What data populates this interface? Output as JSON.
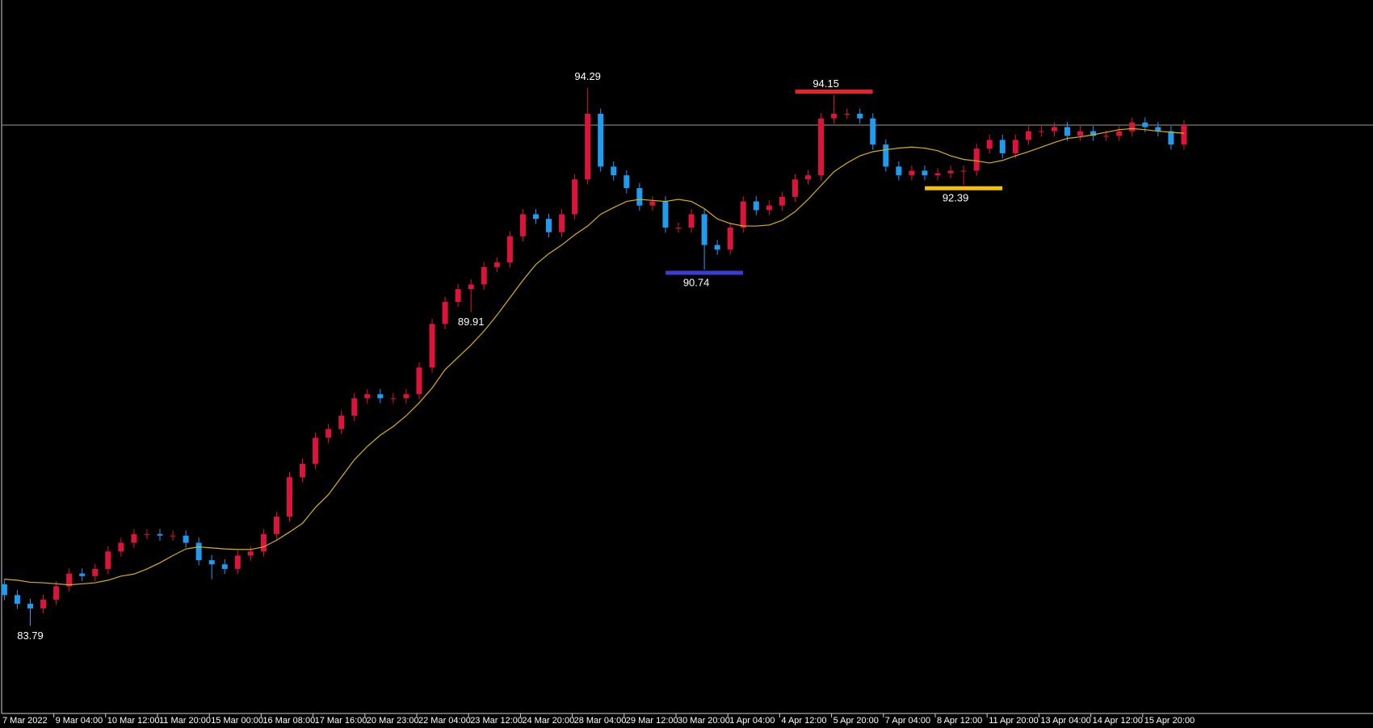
{
  "chart_data": {
    "type": "candlestick",
    "background": "#000000",
    "categories": [
      "7 Mar 2022",
      null,
      null,
      null,
      "9 Mar 04:00",
      null,
      null,
      null,
      "10 Mar 12:00",
      null,
      null,
      null,
      "11 Mar 20:00",
      null,
      null,
      null,
      "15 Mar 00:00",
      null,
      null,
      null,
      "16 Mar 08:00",
      null,
      null,
      null,
      "17 Mar 16:00",
      null,
      null,
      null,
      "20 Mar 23:00",
      null,
      null,
      null,
      "22 Mar 04:00",
      null,
      null,
      null,
      "23 Mar 12:00",
      null,
      null,
      null,
      "24 Mar 20:00",
      null,
      null,
      null,
      "28 Mar 04:00",
      null,
      null,
      null,
      "29 Mar 12:00",
      null,
      null,
      null,
      "30 Mar 20:00",
      null,
      null,
      null,
      "1 Apr 04:00",
      null,
      null,
      null,
      "4 Apr 12:00",
      null,
      null,
      null,
      "5 Apr 20:00",
      null,
      null,
      null,
      "7 Apr 04:00",
      null,
      null,
      null,
      "8 Apr 12:00",
      null,
      null,
      null,
      "11 Apr 20:00",
      null,
      null,
      null,
      "13 Apr 04:00",
      null,
      null,
      null,
      "14 Apr 12:00",
      null,
      null,
      null,
      "15 Apr 20:00",
      null,
      null,
      null
    ],
    "open": [
      84.6,
      84.39,
      84.22,
      84.13,
      84.3,
      84.56,
      84.81,
      84.76,
      84.9,
      85.24,
      85.41,
      85.58,
      85.58,
      85.55,
      85.55,
      85.41,
      85.07,
      84.99,
      84.9,
      85.16,
      85.24,
      85.58,
      85.92,
      86.69,
      86.95,
      87.46,
      87.63,
      87.89,
      88.23,
      88.31,
      88.23,
      88.23,
      88.31,
      88.83,
      89.68,
      90.11,
      90.36,
      90.45,
      90.79,
      90.88,
      91.39,
      91.82,
      91.73,
      91.47,
      91.82,
      92.5,
      93.78,
      92.75,
      92.58,
      92.33,
      91.99,
      92.07,
      91.56,
      91.56,
      91.82,
      91.22,
      91.13,
      91.56,
      92.07,
      91.9,
      91.99,
      92.16,
      92.5,
      92.58,
      93.69,
      93.78,
      93.78,
      93.69,
      93.18,
      92.75,
      92.58,
      92.67,
      92.58,
      92.62,
      92.67,
      92.67,
      93.1,
      93.27,
      93.01,
      93.27,
      93.44,
      93.44,
      93.52,
      93.35,
      93.44,
      93.35,
      93.35,
      93.44,
      93.61,
      93.52,
      93.44,
      93.18
    ],
    "high": [
      84.7,
      84.49,
      84.32,
      84.4,
      84.66,
      84.91,
      84.91,
      85.0,
      85.34,
      85.51,
      85.68,
      85.68,
      85.68,
      85.65,
      85.65,
      85.51,
      85.17,
      85.09,
      85.26,
      85.34,
      85.68,
      86.02,
      86.79,
      87.05,
      87.56,
      87.73,
      87.99,
      88.33,
      88.41,
      88.41,
      88.33,
      88.41,
      88.93,
      89.78,
      90.21,
      90.46,
      90.55,
      90.89,
      90.98,
      91.49,
      91.92,
      91.92,
      91.83,
      91.92,
      92.6,
      94.29,
      93.88,
      92.85,
      92.68,
      92.43,
      92.17,
      92.17,
      91.66,
      91.92,
      91.92,
      91.32,
      91.66,
      92.17,
      92.17,
      92.09,
      92.26,
      92.6,
      92.68,
      93.79,
      94.15,
      93.88,
      93.88,
      93.79,
      93.28,
      92.85,
      92.77,
      92.77,
      92.72,
      92.77,
      92.77,
      93.2,
      93.37,
      93.37,
      93.37,
      93.54,
      93.54,
      93.62,
      93.62,
      93.54,
      93.54,
      93.45,
      93.54,
      93.71,
      93.71,
      93.62,
      93.54,
      93.66
    ],
    "low": [
      84.29,
      84.12,
      83.79,
      84.03,
      84.2,
      84.46,
      84.66,
      84.66,
      84.8,
      85.14,
      85.31,
      85.48,
      85.45,
      85.45,
      85.31,
      84.97,
      84.7,
      84.8,
      84.8,
      85.06,
      85.14,
      85.48,
      85.82,
      86.59,
      86.85,
      87.36,
      87.53,
      87.79,
      88.13,
      88.13,
      88.13,
      88.13,
      88.21,
      88.73,
      89.58,
      90.01,
      89.91,
      90.35,
      90.69,
      90.78,
      91.29,
      91.63,
      91.37,
      91.37,
      91.72,
      92.4,
      92.65,
      92.48,
      92.23,
      91.89,
      91.89,
      91.46,
      91.46,
      91.46,
      90.74,
      91.03,
      91.03,
      91.46,
      91.8,
      91.8,
      91.89,
      92.06,
      92.4,
      92.48,
      93.59,
      93.68,
      93.59,
      93.08,
      92.65,
      92.48,
      92.48,
      92.48,
      92.48,
      92.52,
      92.39,
      92.57,
      93.0,
      92.91,
      92.91,
      93.17,
      93.34,
      93.34,
      93.25,
      93.25,
      93.25,
      93.25,
      93.25,
      93.34,
      93.42,
      93.34,
      93.08,
      93.08
    ],
    "close": [
      84.39,
      84.22,
      84.13,
      84.3,
      84.56,
      84.81,
      84.76,
      84.9,
      85.24,
      85.41,
      85.58,
      85.58,
      85.55,
      85.55,
      85.41,
      85.07,
      84.99,
      84.9,
      85.16,
      85.24,
      85.58,
      85.92,
      86.69,
      86.95,
      87.46,
      87.63,
      87.89,
      88.23,
      88.31,
      88.23,
      88.23,
      88.31,
      88.83,
      89.68,
      90.11,
      90.36,
      90.45,
      90.79,
      90.88,
      91.39,
      91.82,
      91.73,
      91.47,
      91.82,
      92.5,
      93.78,
      92.75,
      92.58,
      92.33,
      91.99,
      92.07,
      91.56,
      91.56,
      91.82,
      91.22,
      91.13,
      91.56,
      92.07,
      91.9,
      91.99,
      92.16,
      92.5,
      92.58,
      93.69,
      93.78,
      93.78,
      93.69,
      93.18,
      92.75,
      92.58,
      92.67,
      92.58,
      92.62,
      92.67,
      92.67,
      93.1,
      93.27,
      93.01,
      93.27,
      93.44,
      93.44,
      93.52,
      93.35,
      93.44,
      93.35,
      93.35,
      93.44,
      93.61,
      93.52,
      93.44,
      93.18,
      93.56
    ],
    "up_color": "#dc143c",
    "down_color": "#1e9cf0",
    "moving_average": {
      "color": "#d9b300",
      "values": [
        84.7,
        84.68,
        84.64,
        84.63,
        84.61,
        84.59,
        84.61,
        84.63,
        84.68,
        84.76,
        84.8,
        84.9,
        85.02,
        85.16,
        85.29,
        85.33,
        85.31,
        85.29,
        85.28,
        85.28,
        85.33,
        85.46,
        85.62,
        85.79,
        86.1,
        86.35,
        86.69,
        87.03,
        87.29,
        87.51,
        87.68,
        87.89,
        88.14,
        88.43,
        88.79,
        89.03,
        89.27,
        89.54,
        89.85,
        90.19,
        90.53,
        90.84,
        91.05,
        91.22,
        91.42,
        91.59,
        91.82,
        91.95,
        92.07,
        92.11,
        92.09,
        92.07,
        92.11,
        92.07,
        91.93,
        91.73,
        91.64,
        91.59,
        91.59,
        91.61,
        91.7,
        91.87,
        92.11,
        92.38,
        92.65,
        92.82,
        92.96,
        93.04,
        93.08,
        93.11,
        93.13,
        93.11,
        93.06,
        92.96,
        92.89,
        92.86,
        92.82,
        92.87,
        92.96,
        93.04,
        93.13,
        93.22,
        93.3,
        93.33,
        93.37,
        93.42,
        93.47,
        93.49,
        93.47,
        93.44,
        93.42,
        93.4
      ]
    },
    "price_line": {
      "value": 93.56,
      "color": "#9a9a9a"
    },
    "ylim": [
      82.08,
      96.0
    ],
    "annotations": [
      {
        "value": 83.79,
        "at": "low"
      },
      {
        "value": 89.91,
        "at": "low"
      },
      {
        "value": 94.29,
        "at": "high"
      },
      {
        "value": 90.74,
        "at": "low",
        "color": "#3b3bd6"
      },
      {
        "value": 94.15,
        "at": "high",
        "color": "#e8202a"
      },
      {
        "value": 92.39,
        "at": "low",
        "color": "#f5c000"
      }
    ]
  }
}
